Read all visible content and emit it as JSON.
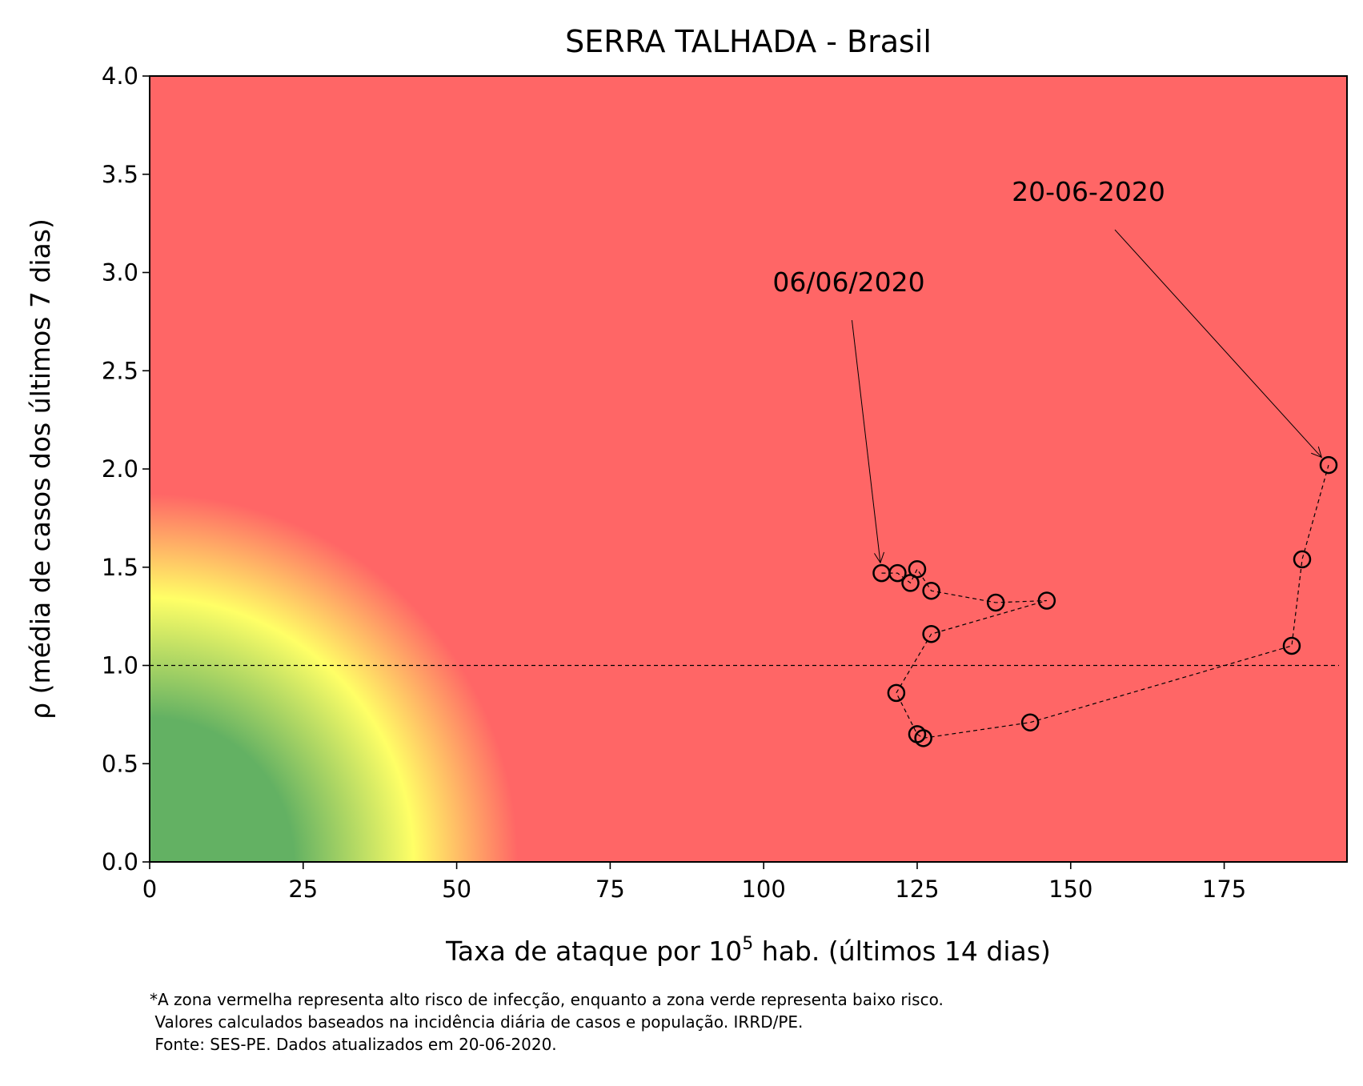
{
  "chart_data": {
    "type": "scatter",
    "title": "SERRA TALHADA - Brasil",
    "xlabel": {
      "prefix": "Taxa de ataque por 10",
      "sup": "5",
      "suffix": " hab. (últimos 14 dias)"
    },
    "ylabel": "ρ (média de casos dos últimos 7 dias)",
    "xlim": [
      0,
      195
    ],
    "ylim": [
      0,
      4
    ],
    "xticks": [
      0,
      25,
      50,
      75,
      100,
      125,
      150,
      175
    ],
    "yticks": [
      0.0,
      0.5,
      1.0,
      1.5,
      2.0,
      2.5,
      3.0,
      3.5,
      4.0
    ],
    "xtick_labels": [
      "0",
      "25",
      "50",
      "75",
      "100",
      "125",
      "150",
      "175"
    ],
    "ytick_labels": [
      "0.0",
      "0.5",
      "1.0",
      "1.5",
      "2.0",
      "2.5",
      "3.0",
      "3.5",
      "4.0"
    ],
    "reference_line_y": 1.0,
    "background": "risk gradient: green (low risk) - yellow - red (high risk)",
    "colors": {
      "low": "#63b163",
      "mid": "#ffff66",
      "high": "#ff6666"
    },
    "series": [
      {
        "marker": "open circle",
        "line": "dashed",
        "x": [
          119.2,
          121.8,
          123.9,
          125.0,
          127.3,
          137.8,
          146.1,
          127.3,
          121.6,
          125.0,
          126.0,
          143.4,
          186.0,
          187.7,
          192.0
        ],
        "y": [
          1.47,
          1.47,
          1.42,
          1.49,
          1.38,
          1.32,
          1.33,
          1.16,
          0.86,
          0.65,
          0.63,
          0.71,
          1.1,
          1.54,
          2.02
        ]
      }
    ],
    "annotations": [
      {
        "text": "06/06/2020",
        "x": 119.2,
        "y": 1.47
      },
      {
        "text": "20-06-2020",
        "x": 192.0,
        "y": 2.02
      }
    ]
  },
  "footnote": [
    "*A zona vermelha representa alto risco de infecção, enquanto a zona verde representa baixo risco.",
    " Valores calculados baseados na incidência diária de casos e população. IRRD/PE.",
    " Fonte: SES-PE. Dados atualizados em 20-06-2020."
  ]
}
